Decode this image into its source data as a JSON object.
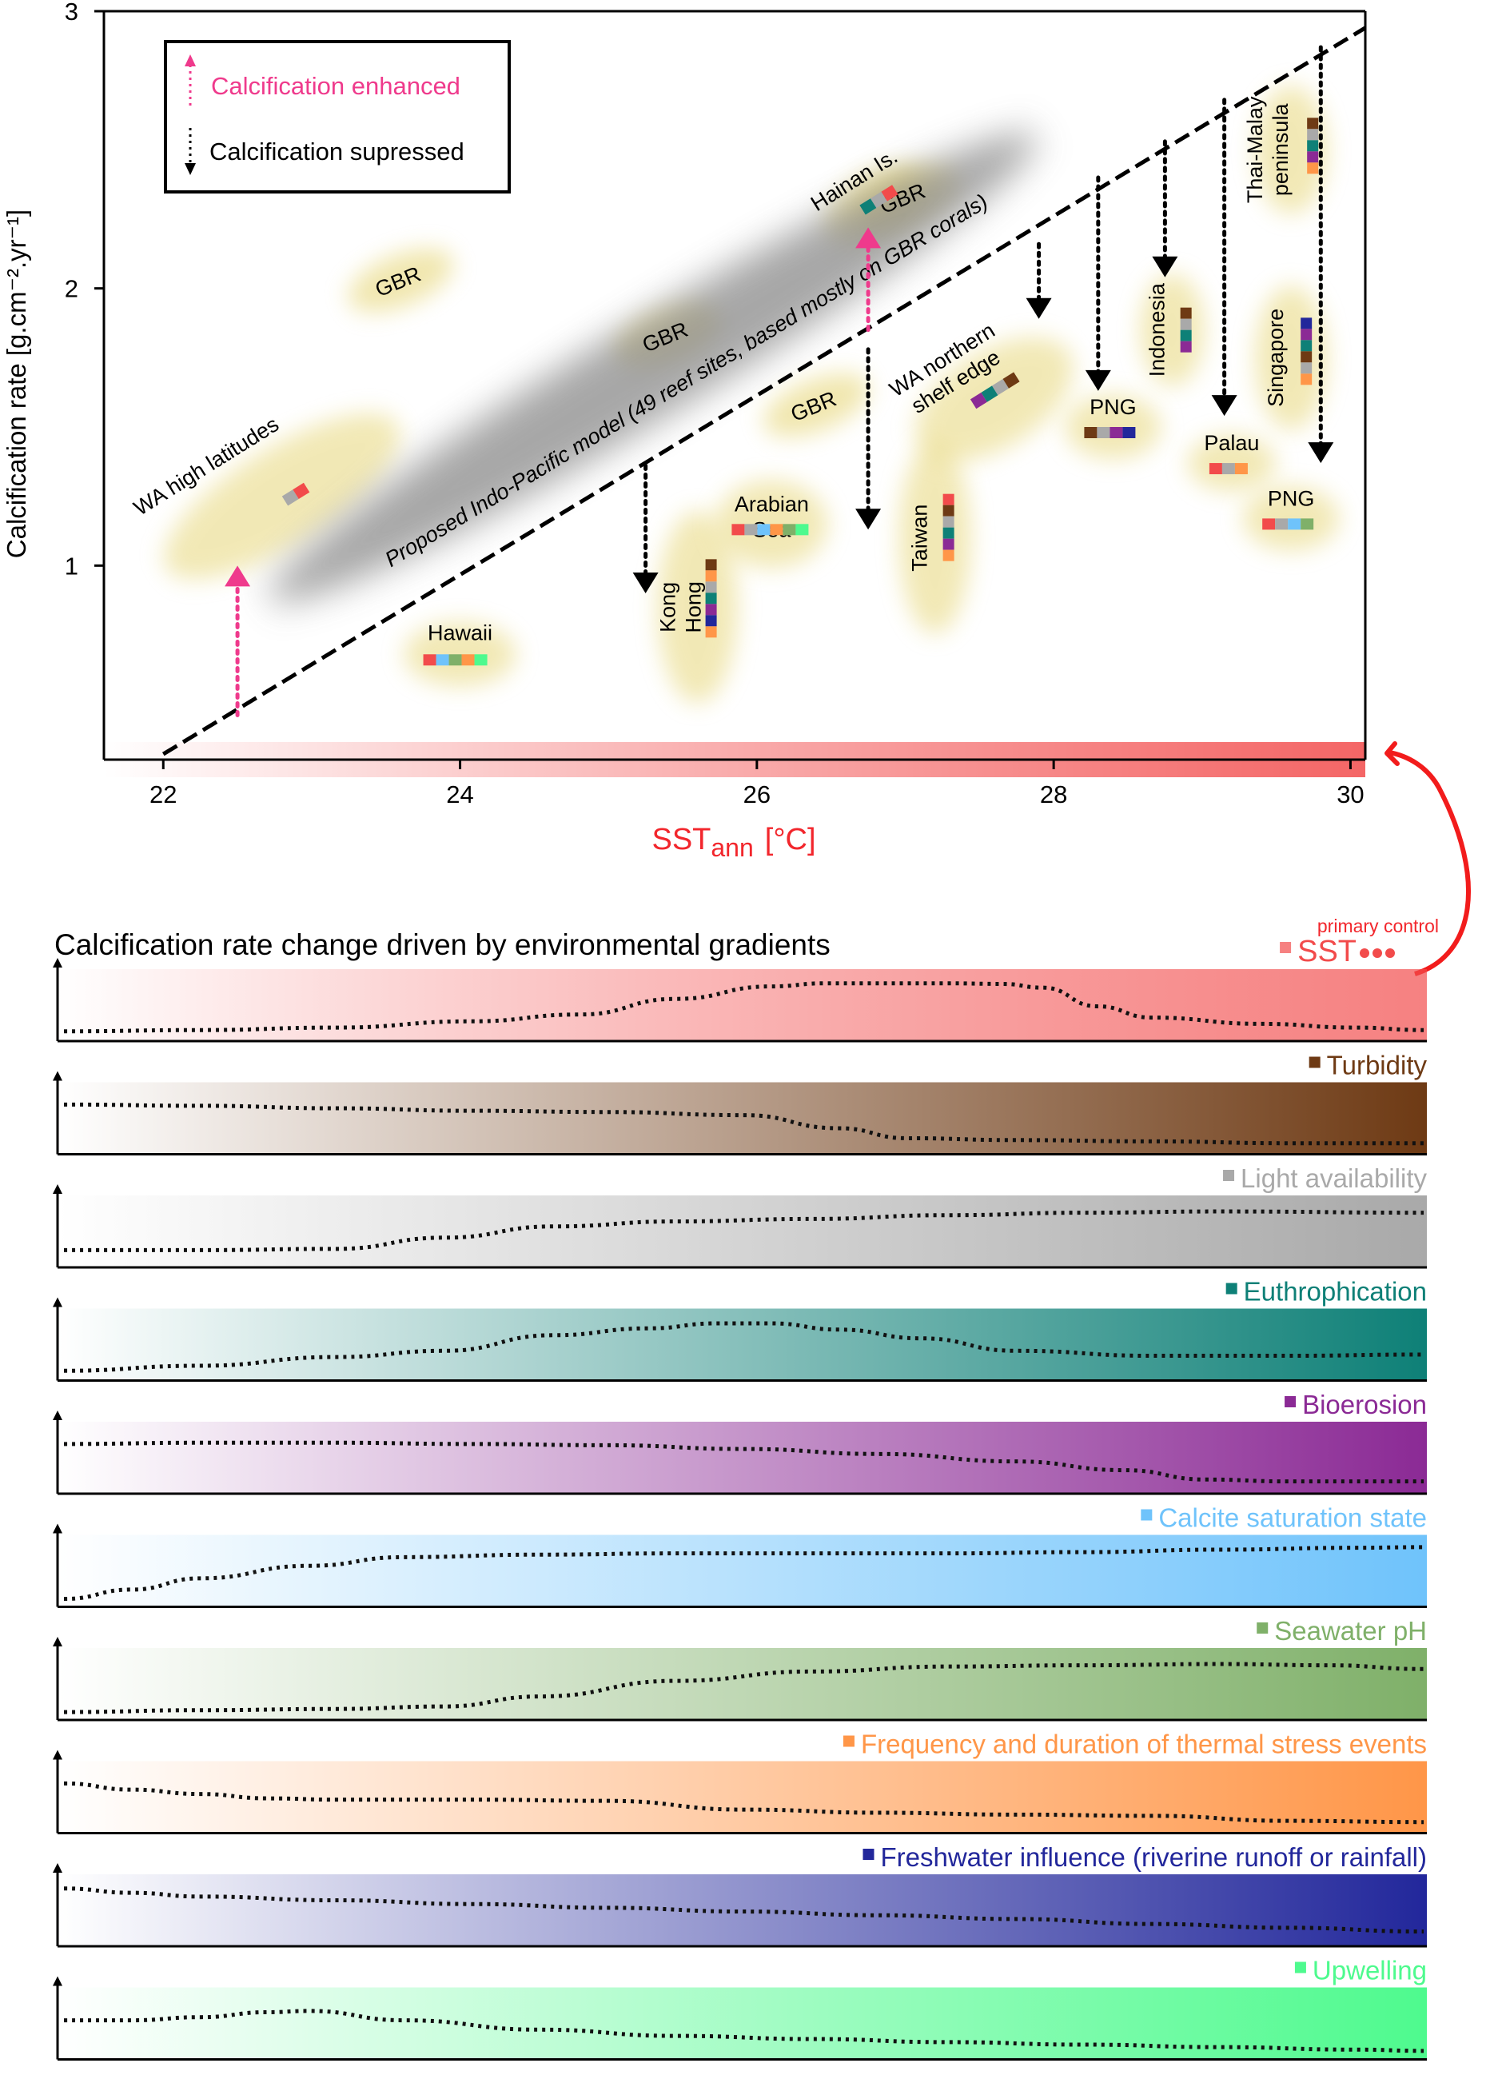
{
  "colors": {
    "sst": "#f24b4b",
    "turbidity": "#6e3a14",
    "light": "#a9a9a9",
    "eutrophication": "#0e8077",
    "bioerosion": "#8b2a95",
    "calcite": "#6fc3fb",
    "ph": "#7fb069",
    "thermal": "#ff9648",
    "freshwater": "#22279b",
    "upwelling": "#4efa8e",
    "enhanced": "#ef3a8c",
    "black": "#000000",
    "halo": "#e7d77a"
  },
  "chart_data": [
    {
      "type": "scatter",
      "title": "",
      "xlabel": "SST",
      "xlabel_sub": "ann",
      "xlabel_unit": "[°C]",
      "ylabel": "Calcification rate  [g.cm⁻².yr⁻¹]",
      "xlim": [
        21.6,
        30.1
      ],
      "ylim": [
        0.3,
        3.0
      ],
      "xticks": [
        "22",
        "24",
        "26",
        "28",
        "30"
      ],
      "xtick_values": [
        22,
        24,
        26,
        28,
        30
      ],
      "yticks": [
        "1",
        "2",
        "3"
      ],
      "ytick_values": [
        1,
        2,
        3
      ],
      "model_line": {
        "label": "Proposed Indo-Pacific model (49 reef sites, based mostly on GBR corals)",
        "x": [
          22.0,
          30.1
        ],
        "y": [
          0.32,
          2.94
        ]
      },
      "legend": {
        "placement": "top-left",
        "items": [
          {
            "label": "Calcification enhanced",
            "style": "pink-dotted-up-arrow"
          },
          {
            "label": "Calcification supressed",
            "style": "black-dotted-down-arrow"
          }
        ]
      },
      "gbr_labels": [
        {
          "label": "GBR",
          "x": 23.6,
          "y": 2.0
        },
        {
          "label": "GBR",
          "x": 25.4,
          "y": 1.8
        },
        {
          "label": "GBR",
          "x": 26.4,
          "y": 1.55
        },
        {
          "label": "GBR",
          "x": 27.0,
          "y": 2.3
        }
      ],
      "sites": [
        {
          "label": "WA high latitudes",
          "x": 22.8,
          "y": 1.25,
          "swatches": [
            "light",
            "sst"
          ]
        },
        {
          "label": "Hawaii",
          "x": 24.0,
          "y": 0.68,
          "swatches": [
            "sst",
            "calcite",
            "ph",
            "thermal",
            "upwelling"
          ]
        },
        {
          "label": "Hong Kong",
          "x": 25.6,
          "y": 0.85,
          "swatches": [
            "turbidity",
            "thermal",
            "light",
            "eutrophication",
            "bioerosion",
            "freshwater",
            "thermal"
          ]
        },
        {
          "label": "Arabian Sea",
          "x": 26.1,
          "y": 1.15,
          "swatches": [
            "sst",
            "light",
            "calcite",
            "thermal",
            "ph",
            "upwelling"
          ]
        },
        {
          "label": "Hainan Is.",
          "x": 26.8,
          "y": 2.3,
          "swatches": [
            "eutrophication",
            "light",
            "sst"
          ]
        },
        {
          "label": "Taiwan",
          "x": 27.2,
          "y": 1.1,
          "swatches": [
            "sst",
            "turbidity",
            "light",
            "eutrophication",
            "bioerosion",
            "thermal"
          ]
        },
        {
          "label": "WA northern shelf edge",
          "x": 27.6,
          "y": 1.6,
          "swatches": [
            "bioerosion",
            "eutrophication",
            "light",
            "turbidity"
          ]
        },
        {
          "label": "PNG",
          "x": 28.4,
          "y": 1.5,
          "swatches": [
            "turbidity",
            "light",
            "bioerosion",
            "freshwater"
          ]
        },
        {
          "label": "Indonesia",
          "x": 28.8,
          "y": 1.85,
          "swatches": [
            "turbidity",
            "light",
            "eutrophication",
            "bioerosion"
          ]
        },
        {
          "label": "Thai-Malay peninsula",
          "x": 29.6,
          "y": 2.5,
          "swatches": [
            "turbidity",
            "light",
            "eutrophication",
            "bioerosion",
            "thermal"
          ]
        },
        {
          "label": "Singapore",
          "x": 29.6,
          "y": 1.75,
          "swatches": [
            "freshwater",
            "bioerosion",
            "eutrophication",
            "turbidity",
            "light",
            "thermal"
          ]
        },
        {
          "label": "Palau",
          "x": 29.2,
          "y": 1.37,
          "swatches": [
            "sst",
            "light",
            "thermal"
          ]
        },
        {
          "label": "PNG",
          "x": 29.6,
          "y": 1.17,
          "swatches": [
            "sst",
            "light",
            "calcite",
            "ph"
          ]
        }
      ],
      "enhanced_arrows": [
        {
          "x": 22.5,
          "from": 0.46,
          "to": 1.0
        },
        {
          "x": 26.75,
          "from": 1.85,
          "to": 2.22
        }
      ],
      "suppressed_arrows": [
        {
          "x": 25.25,
          "from": 1.36,
          "to": 0.9
        },
        {
          "x": 26.75,
          "from": 1.78,
          "to": 1.13
        },
        {
          "x": 27.9,
          "from": 2.16,
          "to": 1.89
        },
        {
          "x": 28.3,
          "from": 2.4,
          "to": 1.63
        },
        {
          "x": 28.75,
          "from": 2.53,
          "to": 2.04
        },
        {
          "x": 29.15,
          "from": 2.68,
          "to": 1.54
        },
        {
          "x": 29.8,
          "from": 2.87,
          "to": 1.37
        }
      ],
      "grid": false
    },
    {
      "type": "line",
      "title": "Calcification rate change driven by environmental gradients",
      "annotation": "primary control",
      "x_domain": [
        0,
        1
      ],
      "series": [
        {
          "key": "sst",
          "name": "SST",
          "points": [
            [
              0,
              0.08
            ],
            [
              0.1,
              0.1
            ],
            [
              0.2,
              0.14
            ],
            [
              0.3,
              0.24
            ],
            [
              0.38,
              0.35
            ],
            [
              0.45,
              0.6
            ],
            [
              0.52,
              0.8
            ],
            [
              0.56,
              0.85
            ],
            [
              0.6,
              0.85
            ],
            [
              0.65,
              0.85
            ],
            [
              0.69,
              0.84
            ],
            [
              0.72,
              0.78
            ],
            [
              0.76,
              0.48
            ],
            [
              0.8,
              0.3
            ],
            [
              0.88,
              0.2
            ],
            [
              0.95,
              0.14
            ],
            [
              1,
              0.1
            ]
          ]
        },
        {
          "key": "turbidity",
          "name": "Turbidity",
          "points": [
            [
              0,
              0.72
            ],
            [
              0.1,
              0.7
            ],
            [
              0.2,
              0.66
            ],
            [
              0.3,
              0.62
            ],
            [
              0.4,
              0.6
            ],
            [
              0.5,
              0.55
            ],
            [
              0.57,
              0.34
            ],
            [
              0.62,
              0.18
            ],
            [
              0.7,
              0.15
            ],
            [
              0.8,
              0.13
            ],
            [
              0.9,
              0.1
            ],
            [
              1,
              0.1
            ]
          ]
        },
        {
          "key": "light",
          "name": "Light availability",
          "points": [
            [
              0,
              0.2
            ],
            [
              0.1,
              0.2
            ],
            [
              0.2,
              0.22
            ],
            [
              0.28,
              0.4
            ],
            [
              0.36,
              0.58
            ],
            [
              0.45,
              0.66
            ],
            [
              0.55,
              0.7
            ],
            [
              0.65,
              0.76
            ],
            [
              0.75,
              0.8
            ],
            [
              0.85,
              0.82
            ],
            [
              1,
              0.8
            ]
          ]
        },
        {
          "key": "eutrophication",
          "name": "Euthrophication",
          "points": [
            [
              0,
              0.08
            ],
            [
              0.1,
              0.16
            ],
            [
              0.2,
              0.3
            ],
            [
              0.28,
              0.4
            ],
            [
              0.36,
              0.65
            ],
            [
              0.43,
              0.76
            ],
            [
              0.48,
              0.84
            ],
            [
              0.52,
              0.84
            ],
            [
              0.57,
              0.74
            ],
            [
              0.63,
              0.6
            ],
            [
              0.7,
              0.4
            ],
            [
              0.8,
              0.32
            ],
            [
              0.9,
              0.32
            ],
            [
              1,
              0.34
            ]
          ]
        },
        {
          "key": "bioerosion",
          "name": "Bioerosion",
          "points": [
            [
              0,
              0.72
            ],
            [
              0.1,
              0.74
            ],
            [
              0.2,
              0.74
            ],
            [
              0.3,
              0.72
            ],
            [
              0.4,
              0.7
            ],
            [
              0.5,
              0.64
            ],
            [
              0.6,
              0.56
            ],
            [
              0.7,
              0.44
            ],
            [
              0.78,
              0.3
            ],
            [
              0.84,
              0.15
            ],
            [
              0.9,
              0.12
            ],
            [
              1,
              0.12
            ]
          ]
        },
        {
          "key": "calcite",
          "name": "Calcite saturation state",
          "points": [
            [
              0,
              0.05
            ],
            [
              0.05,
              0.2
            ],
            [
              0.1,
              0.38
            ],
            [
              0.18,
              0.58
            ],
            [
              0.25,
              0.72
            ],
            [
              0.35,
              0.76
            ],
            [
              0.45,
              0.78
            ],
            [
              0.55,
              0.78
            ],
            [
              0.65,
              0.78
            ],
            [
              0.75,
              0.8
            ],
            [
              0.85,
              0.84
            ],
            [
              0.95,
              0.87
            ],
            [
              1,
              0.88
            ]
          ]
        },
        {
          "key": "ph",
          "name": "Seawater pH",
          "points": [
            [
              0,
              0.05
            ],
            [
              0.1,
              0.08
            ],
            [
              0.2,
              0.1
            ],
            [
              0.28,
              0.14
            ],
            [
              0.35,
              0.3
            ],
            [
              0.45,
              0.55
            ],
            [
              0.55,
              0.7
            ],
            [
              0.65,
              0.78
            ],
            [
              0.75,
              0.8
            ],
            [
              0.85,
              0.82
            ],
            [
              0.93,
              0.8
            ],
            [
              1,
              0.74
            ]
          ]
        },
        {
          "key": "thermal",
          "name": "Frequency and duration of thermal stress events",
          "points": [
            [
              0,
              0.72
            ],
            [
              0.05,
              0.62
            ],
            [
              0.1,
              0.55
            ],
            [
              0.15,
              0.48
            ],
            [
              0.2,
              0.46
            ],
            [
              0.3,
              0.46
            ],
            [
              0.4,
              0.44
            ],
            [
              0.5,
              0.3
            ],
            [
              0.6,
              0.25
            ],
            [
              0.7,
              0.22
            ],
            [
              0.8,
              0.2
            ],
            [
              0.9,
              0.12
            ],
            [
              1,
              0.1
            ]
          ]
        },
        {
          "key": "freshwater",
          "name": "Freshwater influence (riverine runoff or rainfall)",
          "points": [
            [
              0,
              0.85
            ],
            [
              0.05,
              0.78
            ],
            [
              0.1,
              0.72
            ],
            [
              0.2,
              0.66
            ],
            [
              0.3,
              0.6
            ],
            [
              0.4,
              0.54
            ],
            [
              0.5,
              0.48
            ],
            [
              0.6,
              0.42
            ],
            [
              0.7,
              0.36
            ],
            [
              0.8,
              0.28
            ],
            [
              0.9,
              0.22
            ],
            [
              1,
              0.16
            ]
          ]
        },
        {
          "key": "upwelling",
          "name": "Upwelling",
          "points": [
            [
              0,
              0.55
            ],
            [
              0.05,
              0.55
            ],
            [
              0.1,
              0.6
            ],
            [
              0.15,
              0.68
            ],
            [
              0.18,
              0.7
            ],
            [
              0.25,
              0.55
            ],
            [
              0.35,
              0.4
            ],
            [
              0.45,
              0.3
            ],
            [
              0.55,
              0.25
            ],
            [
              0.65,
              0.2
            ],
            [
              0.75,
              0.16
            ],
            [
              0.85,
              0.12
            ],
            [
              0.95,
              0.08
            ],
            [
              1,
              0.06
            ]
          ]
        }
      ]
    }
  ]
}
